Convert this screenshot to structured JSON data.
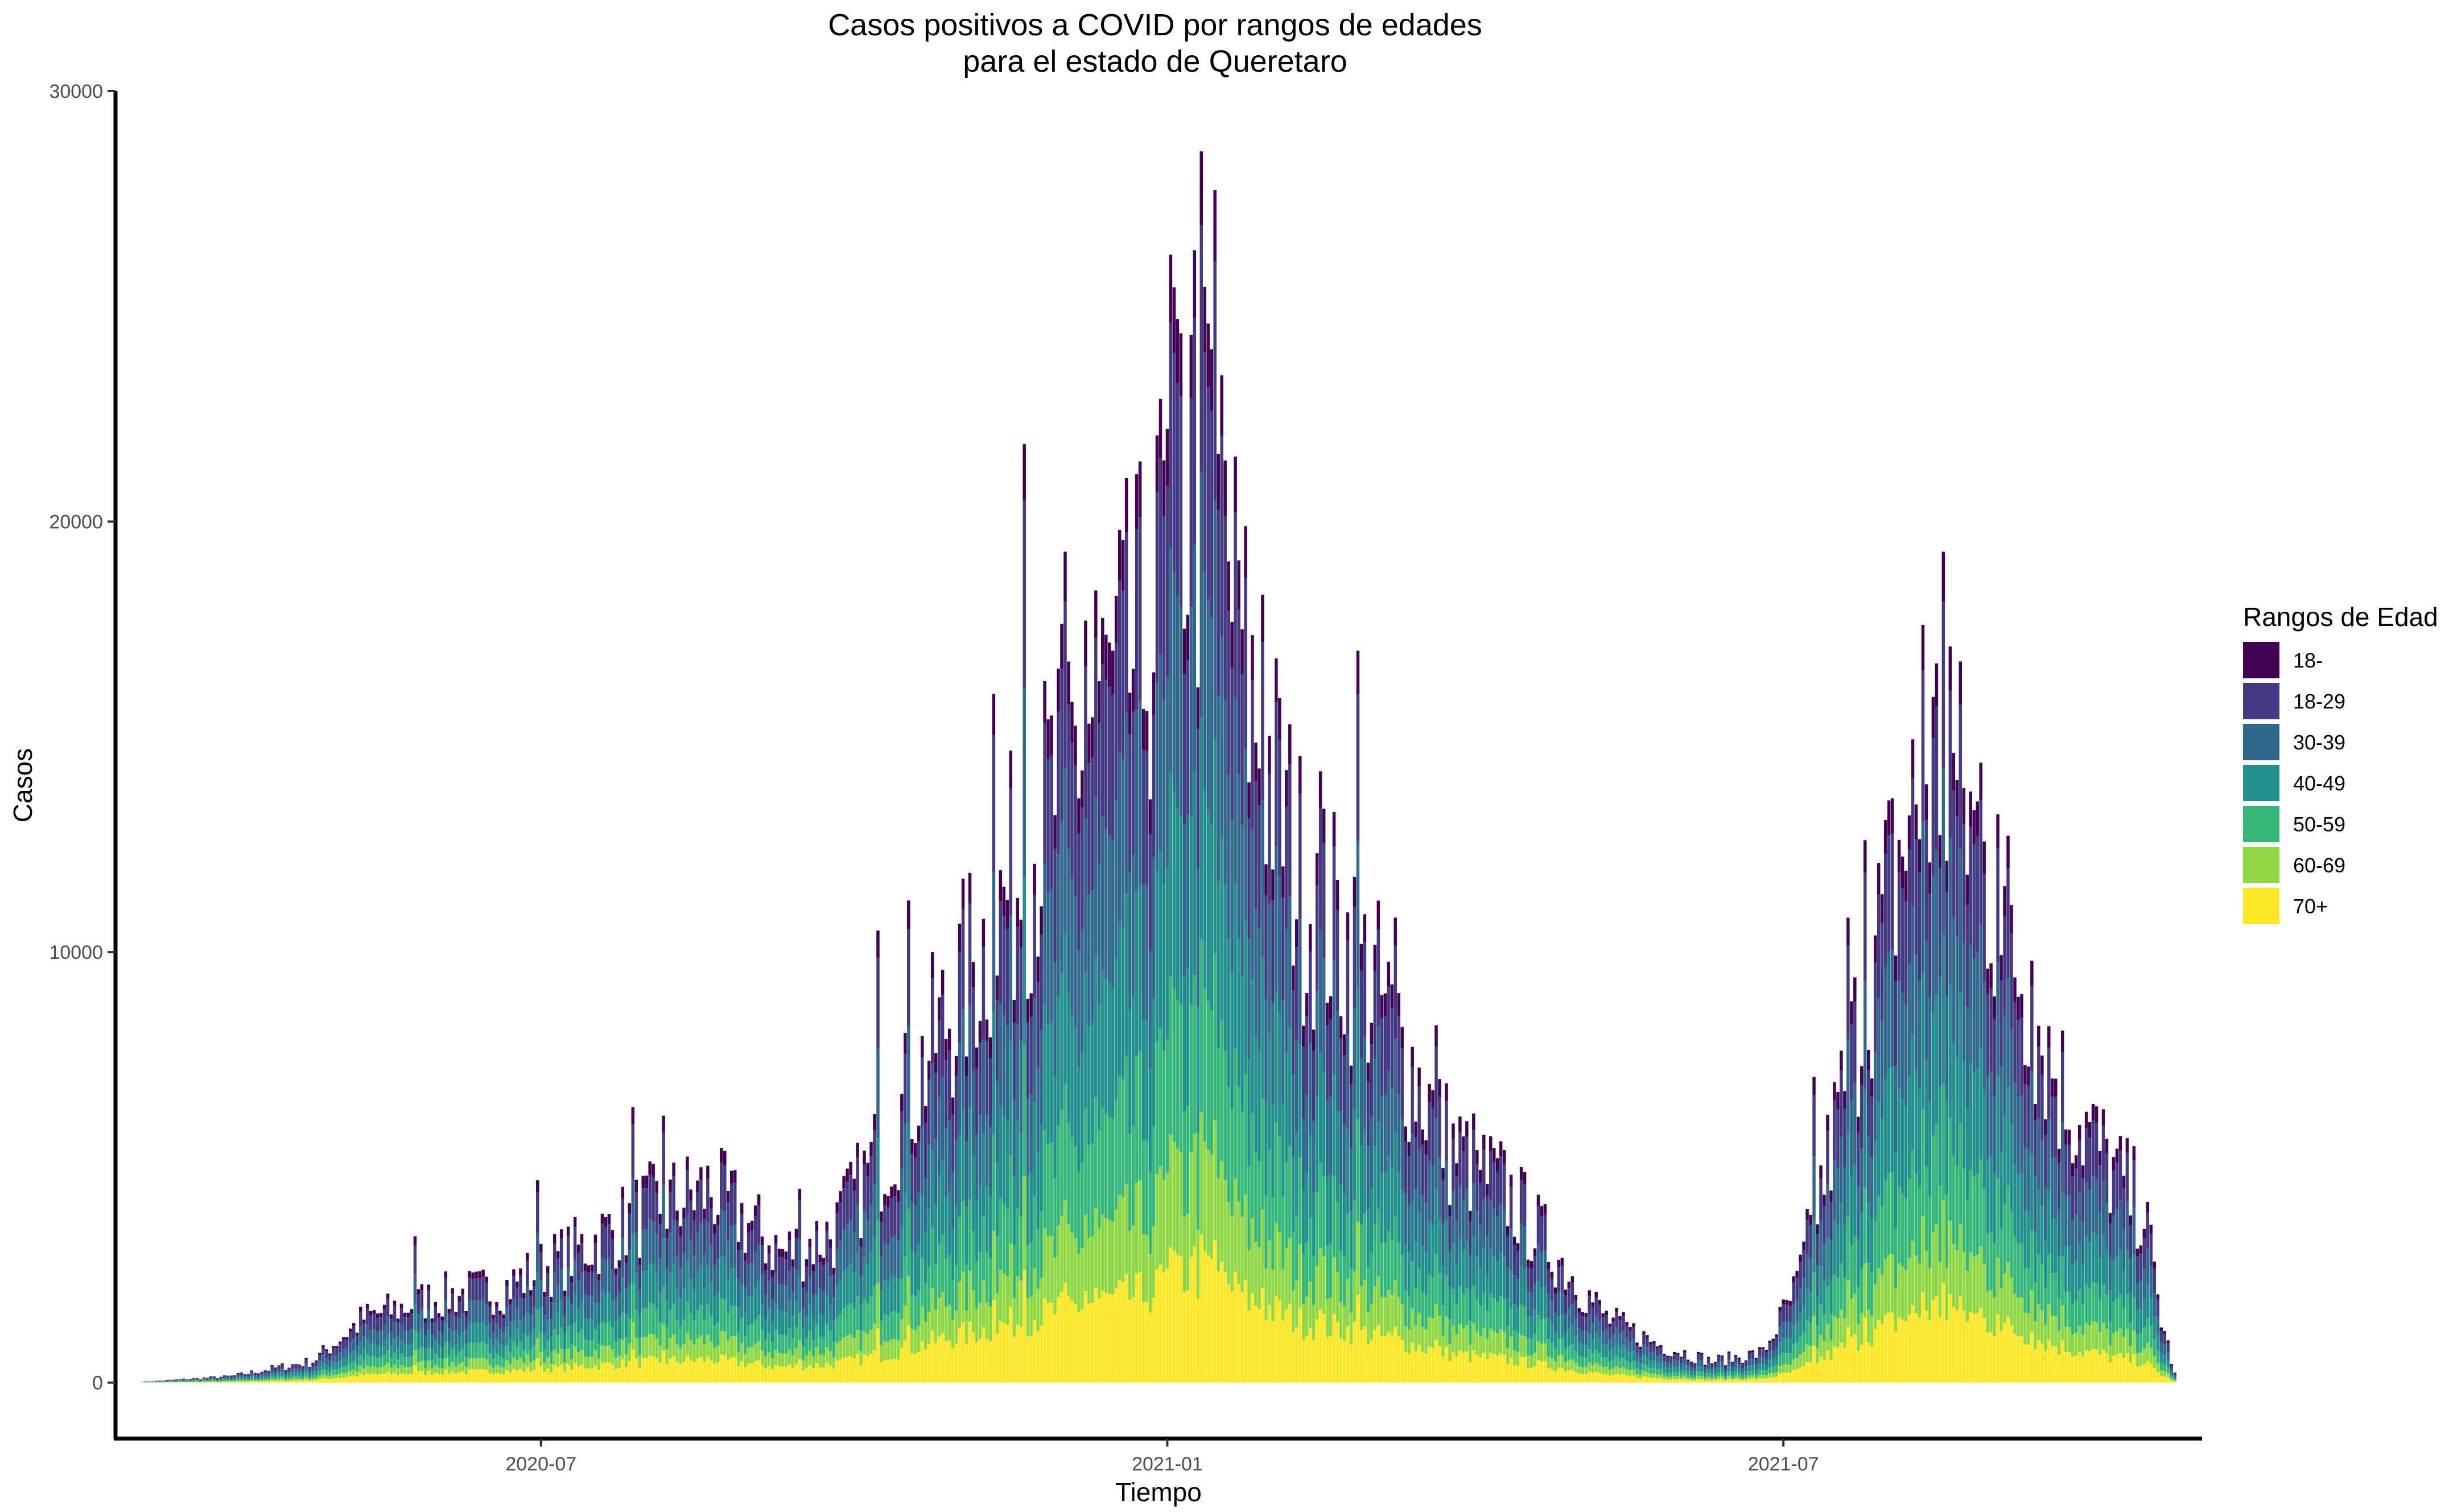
{
  "chart_data": {
    "type": "bar",
    "stacked": true,
    "title": "Casos positivos a COVID por rangos de edades",
    "subtitle": "para el estado de Queretaro",
    "xlabel": "Tiempo",
    "ylabel": "Casos",
    "ylim": [
      -1300,
      30000
    ],
    "y_ticks": [
      0,
      10000,
      20000,
      30000
    ],
    "x_range": [
      "2020-02-27",
      "2021-11-01"
    ],
    "x_ticks": [
      {
        "date": "2020-07-01",
        "label": "2020-07"
      },
      {
        "date": "2021-01-01",
        "label": "2021-01"
      },
      {
        "date": "2021-07-01",
        "label": "2021-07"
      }
    ],
    "grid": false,
    "legend_position": "right",
    "legend_title": "Rangos de Edad",
    "series": [
      {
        "name": "18-",
        "color": "#440154"
      },
      {
        "name": "18-29",
        "color": "#443A83"
      },
      {
        "name": "30-39",
        "color": "#31688E"
      },
      {
        "name": "40-49",
        "color": "#21908C"
      },
      {
        "name": "50-59",
        "color": "#35B779"
      },
      {
        "name": "60-69",
        "color": "#8FD744"
      },
      {
        "name": "70+",
        "color": "#FDE725"
      }
    ],
    "age_share": {
      "18-": 0.06,
      "18-29": 0.2,
      "30-39": 0.2,
      "40-49": 0.18,
      "50-59": 0.14,
      "60-69": 0.1,
      "70+": 0.12
    },
    "bar_start_date": "2020-03-06",
    "bar_step_days": 1,
    "totals_keyframes": [
      [
        "2020-03-06",
        20
      ],
      [
        "2020-04-01",
        150
      ],
      [
        "2020-04-25",
        500
      ],
      [
        "2020-05-10",
        1500
      ],
      [
        "2020-06-01",
        2000
      ],
      [
        "2020-06-20",
        2200
      ],
      [
        "2020-07-10",
        3000
      ],
      [
        "2020-08-01",
        4000
      ],
      [
        "2020-08-20",
        4500
      ],
      [
        "2020-09-10",
        3000
      ],
      [
        "2020-09-25",
        3500
      ],
      [
        "2020-10-10",
        5500
      ],
      [
        "2020-10-25",
        8000
      ],
      [
        "2020-11-10",
        10500
      ],
      [
        "2020-11-25",
        13000
      ],
      [
        "2020-12-10",
        15500
      ],
      [
        "2020-12-25",
        17000
      ],
      [
        "2021-01-05",
        21000
      ],
      [
        "2021-01-15",
        20500
      ],
      [
        "2021-01-25",
        16000
      ],
      [
        "2021-02-10",
        11500
      ],
      [
        "2021-02-25",
        10000
      ],
      [
        "2021-03-10",
        8000
      ],
      [
        "2021-03-25",
        5500
      ],
      [
        "2021-04-10",
        4500
      ],
      [
        "2021-04-25",
        3000
      ],
      [
        "2021-05-10",
        1500
      ],
      [
        "2021-05-25",
        900
      ],
      [
        "2021-06-10",
        500
      ],
      [
        "2021-06-25",
        700
      ],
      [
        "2021-07-05",
        2200
      ],
      [
        "2021-07-15",
        5500
      ],
      [
        "2021-07-25",
        9000
      ],
      [
        "2021-08-05",
        12500
      ],
      [
        "2021-08-15",
        14500
      ],
      [
        "2021-08-25",
        13000
      ],
      [
        "2021-09-05",
        10500
      ],
      [
        "2021-09-20",
        7000
      ],
      [
        "2021-10-05",
        5000
      ],
      [
        "2021-10-15",
        4000
      ],
      [
        "2021-10-20",
        1500
      ],
      [
        "2021-10-24",
        200
      ]
    ],
    "spikes": [
      [
        "2020-05-25",
        3400
      ],
      [
        "2020-06-30",
        4700
      ],
      [
        "2020-07-28",
        6400
      ],
      [
        "2020-08-06",
        6200
      ],
      [
        "2020-09-15",
        4500
      ],
      [
        "2020-09-28",
        4800
      ],
      [
        "2020-10-08",
        10500
      ],
      [
        "2020-10-17",
        11200
      ],
      [
        "2020-11-11",
        16000
      ],
      [
        "2020-11-20",
        21800
      ],
      [
        "2020-12-02",
        19300
      ],
      [
        "2020-12-08",
        17700
      ],
      [
        "2020-12-11",
        18400
      ],
      [
        "2020-12-16",
        17000
      ],
      [
        "2020-12-26",
        15600
      ],
      [
        "2020-12-29",
        22000
      ],
      [
        "2021-01-02",
        26200
      ],
      [
        "2021-01-04",
        24700
      ],
      [
        "2021-01-09",
        26300
      ],
      [
        "2021-01-11",
        28600
      ],
      [
        "2021-01-13",
        24600
      ],
      [
        "2021-01-15",
        27700
      ],
      [
        "2021-01-17",
        23400
      ],
      [
        "2021-01-22",
        19100
      ],
      [
        "2021-01-29",
        18300
      ],
      [
        "2021-02-15",
        14200
      ],
      [
        "2021-02-26",
        17000
      ],
      [
        "2021-03-09",
        10800
      ],
      [
        "2021-03-21",
        8300
      ],
      [
        "2021-04-02",
        5400
      ],
      [
        "2021-07-10",
        7100
      ],
      [
        "2021-07-20",
        10800
      ],
      [
        "2021-07-25",
        12600
      ],
      [
        "2021-08-11",
        17600
      ],
      [
        "2021-08-17",
        19300
      ],
      [
        "2021-08-19",
        17100
      ],
      [
        "2021-08-28",
        14400
      ],
      [
        "2021-09-02",
        13200
      ],
      [
        "2021-09-12",
        9800
      ]
    ]
  }
}
